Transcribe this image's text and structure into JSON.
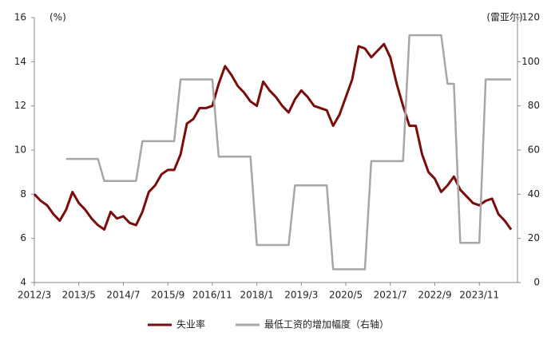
{
  "chart_data": {
    "type": "line",
    "y_unit_label": "(%)",
    "y2_unit_label": "(雷亚尔)",
    "categories": [
      "2012/3",
      null,
      null,
      null,
      null,
      null,
      null,
      "2013/5",
      null,
      null,
      null,
      null,
      null,
      null,
      "2014/7",
      null,
      null,
      null,
      null,
      null,
      null,
      "2015/9",
      null,
      null,
      null,
      null,
      null,
      null,
      "2016/11",
      null,
      null,
      null,
      null,
      null,
      null,
      "2018/1",
      null,
      null,
      null,
      null,
      null,
      null,
      "2019/3",
      null,
      null,
      null,
      null,
      null,
      null,
      "2020/5",
      null,
      null,
      null,
      null,
      null,
      null,
      "2021/7",
      null,
      null,
      null,
      null,
      null,
      null,
      "2022/9",
      null,
      null,
      null,
      null,
      null,
      null,
      "2023/11",
      null,
      null,
      null,
      null,
      null
    ],
    "series": [
      {
        "name": "失业率",
        "color": "#7b0c0c",
        "axis": "y",
        "values": [
          8.0,
          7.7,
          7.5,
          7.1,
          6.8,
          7.3,
          8.1,
          7.6,
          7.3,
          6.9,
          6.6,
          6.4,
          7.2,
          6.9,
          7.0,
          6.7,
          6.6,
          7.2,
          8.1,
          8.4,
          8.9,
          9.1,
          9.1,
          9.8,
          11.2,
          11.4,
          11.9,
          11.9,
          12.0,
          13.0,
          13.8,
          13.4,
          12.9,
          12.6,
          12.2,
          12.0,
          13.1,
          12.7,
          12.4,
          12.0,
          11.7,
          12.3,
          12.7,
          12.4,
          12.0,
          11.9,
          11.8,
          11.1,
          11.6,
          12.4,
          13.2,
          14.7,
          14.6,
          14.2,
          14.5,
          14.8,
          14.2,
          13.0,
          12.0,
          11.1,
          11.1,
          9.8,
          9.0,
          8.7,
          8.1,
          8.4,
          8.8,
          8.2,
          7.9,
          7.6,
          7.5,
          7.7,
          7.8,
          7.1,
          6.8,
          6.4
        ]
      },
      {
        "name": "最低工资的增加幅度（右轴）",
        "color": "#a6a6a6",
        "axis": "y2",
        "values": [
          null,
          null,
          null,
          null,
          null,
          56,
          56,
          56,
          56,
          56,
          56,
          46,
          46,
          46,
          46,
          46,
          46,
          64,
          64,
          64,
          64,
          64,
          64,
          92,
          92,
          92,
          92,
          92,
          92,
          57,
          57,
          57,
          57,
          57,
          57,
          17,
          17,
          17,
          17,
          17,
          17,
          44,
          44,
          44,
          44,
          44,
          44,
          6,
          6,
          6,
          6,
          6,
          6,
          55,
          55,
          55,
          55,
          55,
          55,
          112,
          112,
          112,
          112,
          112,
          112,
          90,
          90,
          18,
          18,
          18,
          18,
          92,
          92,
          92,
          92,
          92
        ]
      }
    ],
    "ylim": [
      4,
      16
    ],
    "yticks": [
      4,
      6,
      8,
      10,
      12,
      14,
      16
    ],
    "y2lim": [
      0,
      120
    ],
    "y2ticks": [
      0,
      20,
      40,
      60,
      80,
      100,
      120
    ],
    "legend": "bottom"
  }
}
